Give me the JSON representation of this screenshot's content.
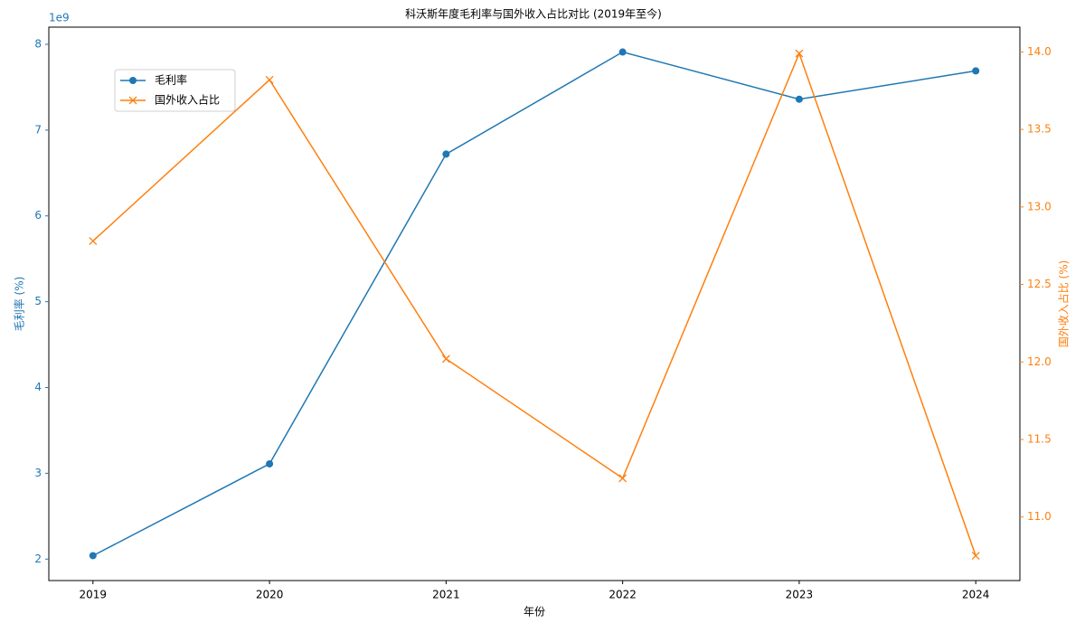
{
  "chart_data": {
    "type": "line",
    "title": "科沃斯年度毛利率与国外收入占比对比 (2019年至今)",
    "xlabel": "年份",
    "ylabel": "毛利率 (%)",
    "y2label": "国外收入占比 (%)",
    "y_offset_label": "1e9",
    "x": [
      2019,
      2020,
      2021,
      2022,
      2023,
      2024
    ],
    "xlim": [
      2018.75,
      2024.25
    ],
    "xticks": [
      2019,
      2020,
      2021,
      2022,
      2023,
      2024
    ],
    "ylim": [
      1.75,
      8.2
    ],
    "yticks": [
      2,
      3,
      4,
      5,
      6,
      7,
      8
    ],
    "y2lim": [
      10.59,
      14.16
    ],
    "y2ticks": [
      {
        "value": 11,
        "label": "11.0"
      },
      11.5,
      {
        "value": 12,
        "label": "12.0"
      },
      12.5,
      {
        "value": 13,
        "label": "13.0"
      },
      13.5,
      {
        "value": 14,
        "label": "14.0"
      }
    ],
    "series": [
      {
        "name": "毛利率",
        "color": "#1f77b4",
        "marker": "circle",
        "values": [
          2.04,
          3.11,
          6.72,
          7.91,
          7.36,
          7.69
        ]
      },
      {
        "name": "国外收入占比",
        "color": "#ff7f0e",
        "marker": "x",
        "axis": "y2",
        "values": [
          12.78,
          13.82,
          12.02,
          11.25,
          13.99,
          10.75
        ]
      }
    ],
    "legend": "upper left"
  }
}
